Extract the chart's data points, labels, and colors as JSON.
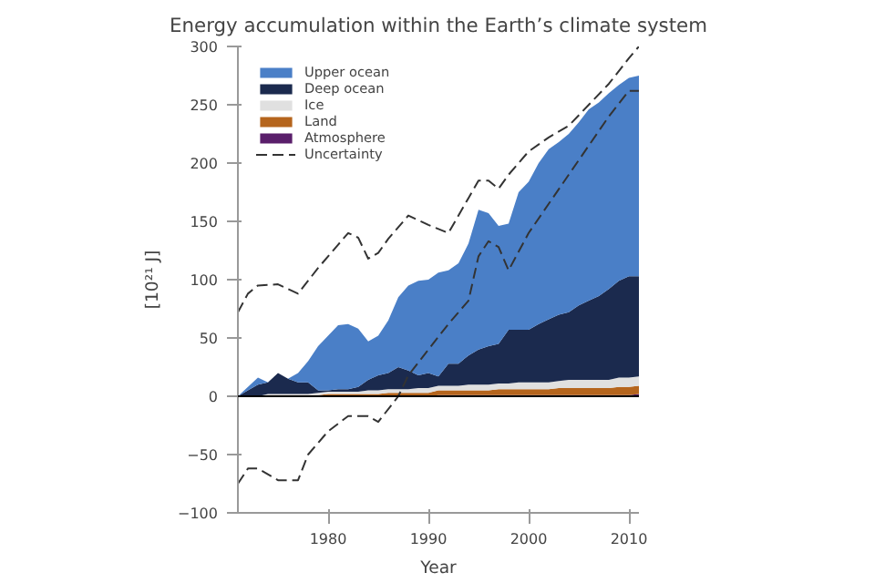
{
  "chart_data": {
    "type": "area",
    "stacked": true,
    "title": "Energy accumulation within the Earth’s climate system",
    "xlabel": "Year",
    "ylabel": "[10²¹ J]",
    "x": [
      1971,
      1972,
      1973,
      1974,
      1975,
      1976,
      1977,
      1978,
      1979,
      1980,
      1981,
      1982,
      1983,
      1984,
      1985,
      1986,
      1987,
      1988,
      1989,
      1990,
      1991,
      1992,
      1993,
      1994,
      1995,
      1996,
      1997,
      1998,
      1999,
      2000,
      2001,
      2002,
      2003,
      2004,
      2005,
      2006,
      2007,
      2008,
      2009,
      2010,
      2011
    ],
    "series": [
      {
        "name": "Atmosphere",
        "color": "#5a1f6b",
        "values": [
          0,
          0,
          0,
          0,
          0,
          0,
          0,
          0,
          0,
          0,
          0,
          0,
          0,
          0,
          0,
          0,
          0,
          0,
          0,
          0,
          1,
          1,
          1,
          1,
          1,
          1,
          1,
          1,
          1,
          1,
          1,
          1,
          1,
          1,
          1,
          1,
          1,
          1,
          1,
          1,
          2
        ]
      },
      {
        "name": "Land",
        "color": "#b5651d",
        "values": [
          0,
          0,
          0,
          1,
          1,
          1,
          1,
          1,
          1,
          2,
          2,
          2,
          2,
          2,
          2,
          3,
          3,
          3,
          3,
          3,
          4,
          4,
          4,
          4,
          4,
          4,
          5,
          5,
          5,
          5,
          5,
          5,
          6,
          6,
          6,
          6,
          6,
          6,
          7,
          7,
          7
        ]
      },
      {
        "name": "Ice",
        "color": "#e0e0e0",
        "values": [
          0,
          0,
          0,
          1,
          1,
          1,
          1,
          1,
          2,
          2,
          2,
          2,
          2,
          3,
          3,
          3,
          3,
          3,
          4,
          4,
          4,
          4,
          4,
          5,
          5,
          5,
          5,
          5,
          6,
          6,
          6,
          6,
          6,
          7,
          7,
          7,
          7,
          7,
          8,
          8,
          8
        ]
      },
      {
        "name": "Deep ocean",
        "color": "#1b2a4e",
        "values": [
          0,
          5,
          10,
          10,
          18,
          13,
          10,
          10,
          2,
          1,
          2,
          2,
          4,
          9,
          13,
          14,
          19,
          16,
          11,
          13,
          8,
          19,
          19,
          25,
          30,
          33,
          34,
          46,
          45,
          45,
          50,
          54,
          57,
          58,
          64,
          68,
          72,
          78,
          83,
          87,
          86
        ]
      },
      {
        "name": "Upper ocean",
        "color": "#4a7fc7",
        "values": [
          0,
          3,
          6,
          0,
          0,
          0,
          8,
          18,
          38,
          47,
          55,
          56,
          50,
          33,
          34,
          45,
          60,
          73,
          81,
          80,
          89,
          80,
          86,
          96,
          120,
          114,
          101,
          91,
          118,
          127,
          138,
          146,
          148,
          153,
          157,
          164,
          166,
          168,
          168,
          170,
          172
        ]
      },
      {
        "name": "Uncertainty",
        "type": "line",
        "color": "#333333",
        "line_style": "dashed",
        "x": [
          1971,
          1972,
          1973,
          1975,
          1977,
          1979,
          1981,
          1982,
          1983,
          1984,
          1985,
          1986,
          1988,
          1990,
          1992,
          1994,
          1995,
          1996,
          1997,
          1998,
          2000,
          2002,
          2004,
          2006,
          2008,
          2010,
          2011
        ],
        "values": [
          72,
          88,
          95,
          96,
          88,
          110,
          130,
          140,
          136,
          118,
          123,
          135,
          155,
          147,
          140,
          170,
          185,
          185,
          178,
          190,
          210,
          222,
          232,
          250,
          268,
          290,
          300
        ]
      },
      {
        "type": "line",
        "color": "#333333",
        "line_style": "dashed",
        "x": [
          1971,
          1972,
          1973,
          1975,
          1977,
          1978,
          1980,
          1982,
          1984,
          1985,
          1987,
          1988,
          1990,
          1992,
          1994,
          1995,
          1996,
          1997,
          1998,
          2000,
          2002,
          2004,
          2006,
          2008,
          2010,
          2011
        ],
        "values": [
          -75,
          -62,
          -62,
          -72,
          -72,
          -50,
          -30,
          -17,
          -17,
          -22,
          0,
          18,
          40,
          62,
          82,
          120,
          133,
          128,
          108,
          140,
          165,
          190,
          215,
          240,
          262,
          262
        ]
      }
    ],
    "xlim": [
      1971,
      2011
    ],
    "xticks": [
      1980,
      1990,
      2000,
      2010
    ],
    "ylim": [
      -100,
      300
    ],
    "yticks": [
      -100,
      -50,
      0,
      50,
      100,
      150,
      200,
      250,
      300
    ],
    "ref_lines": [
      {
        "axis": "y",
        "value": 0,
        "color": "#000000"
      }
    ],
    "grid": false,
    "legend": "top left"
  }
}
